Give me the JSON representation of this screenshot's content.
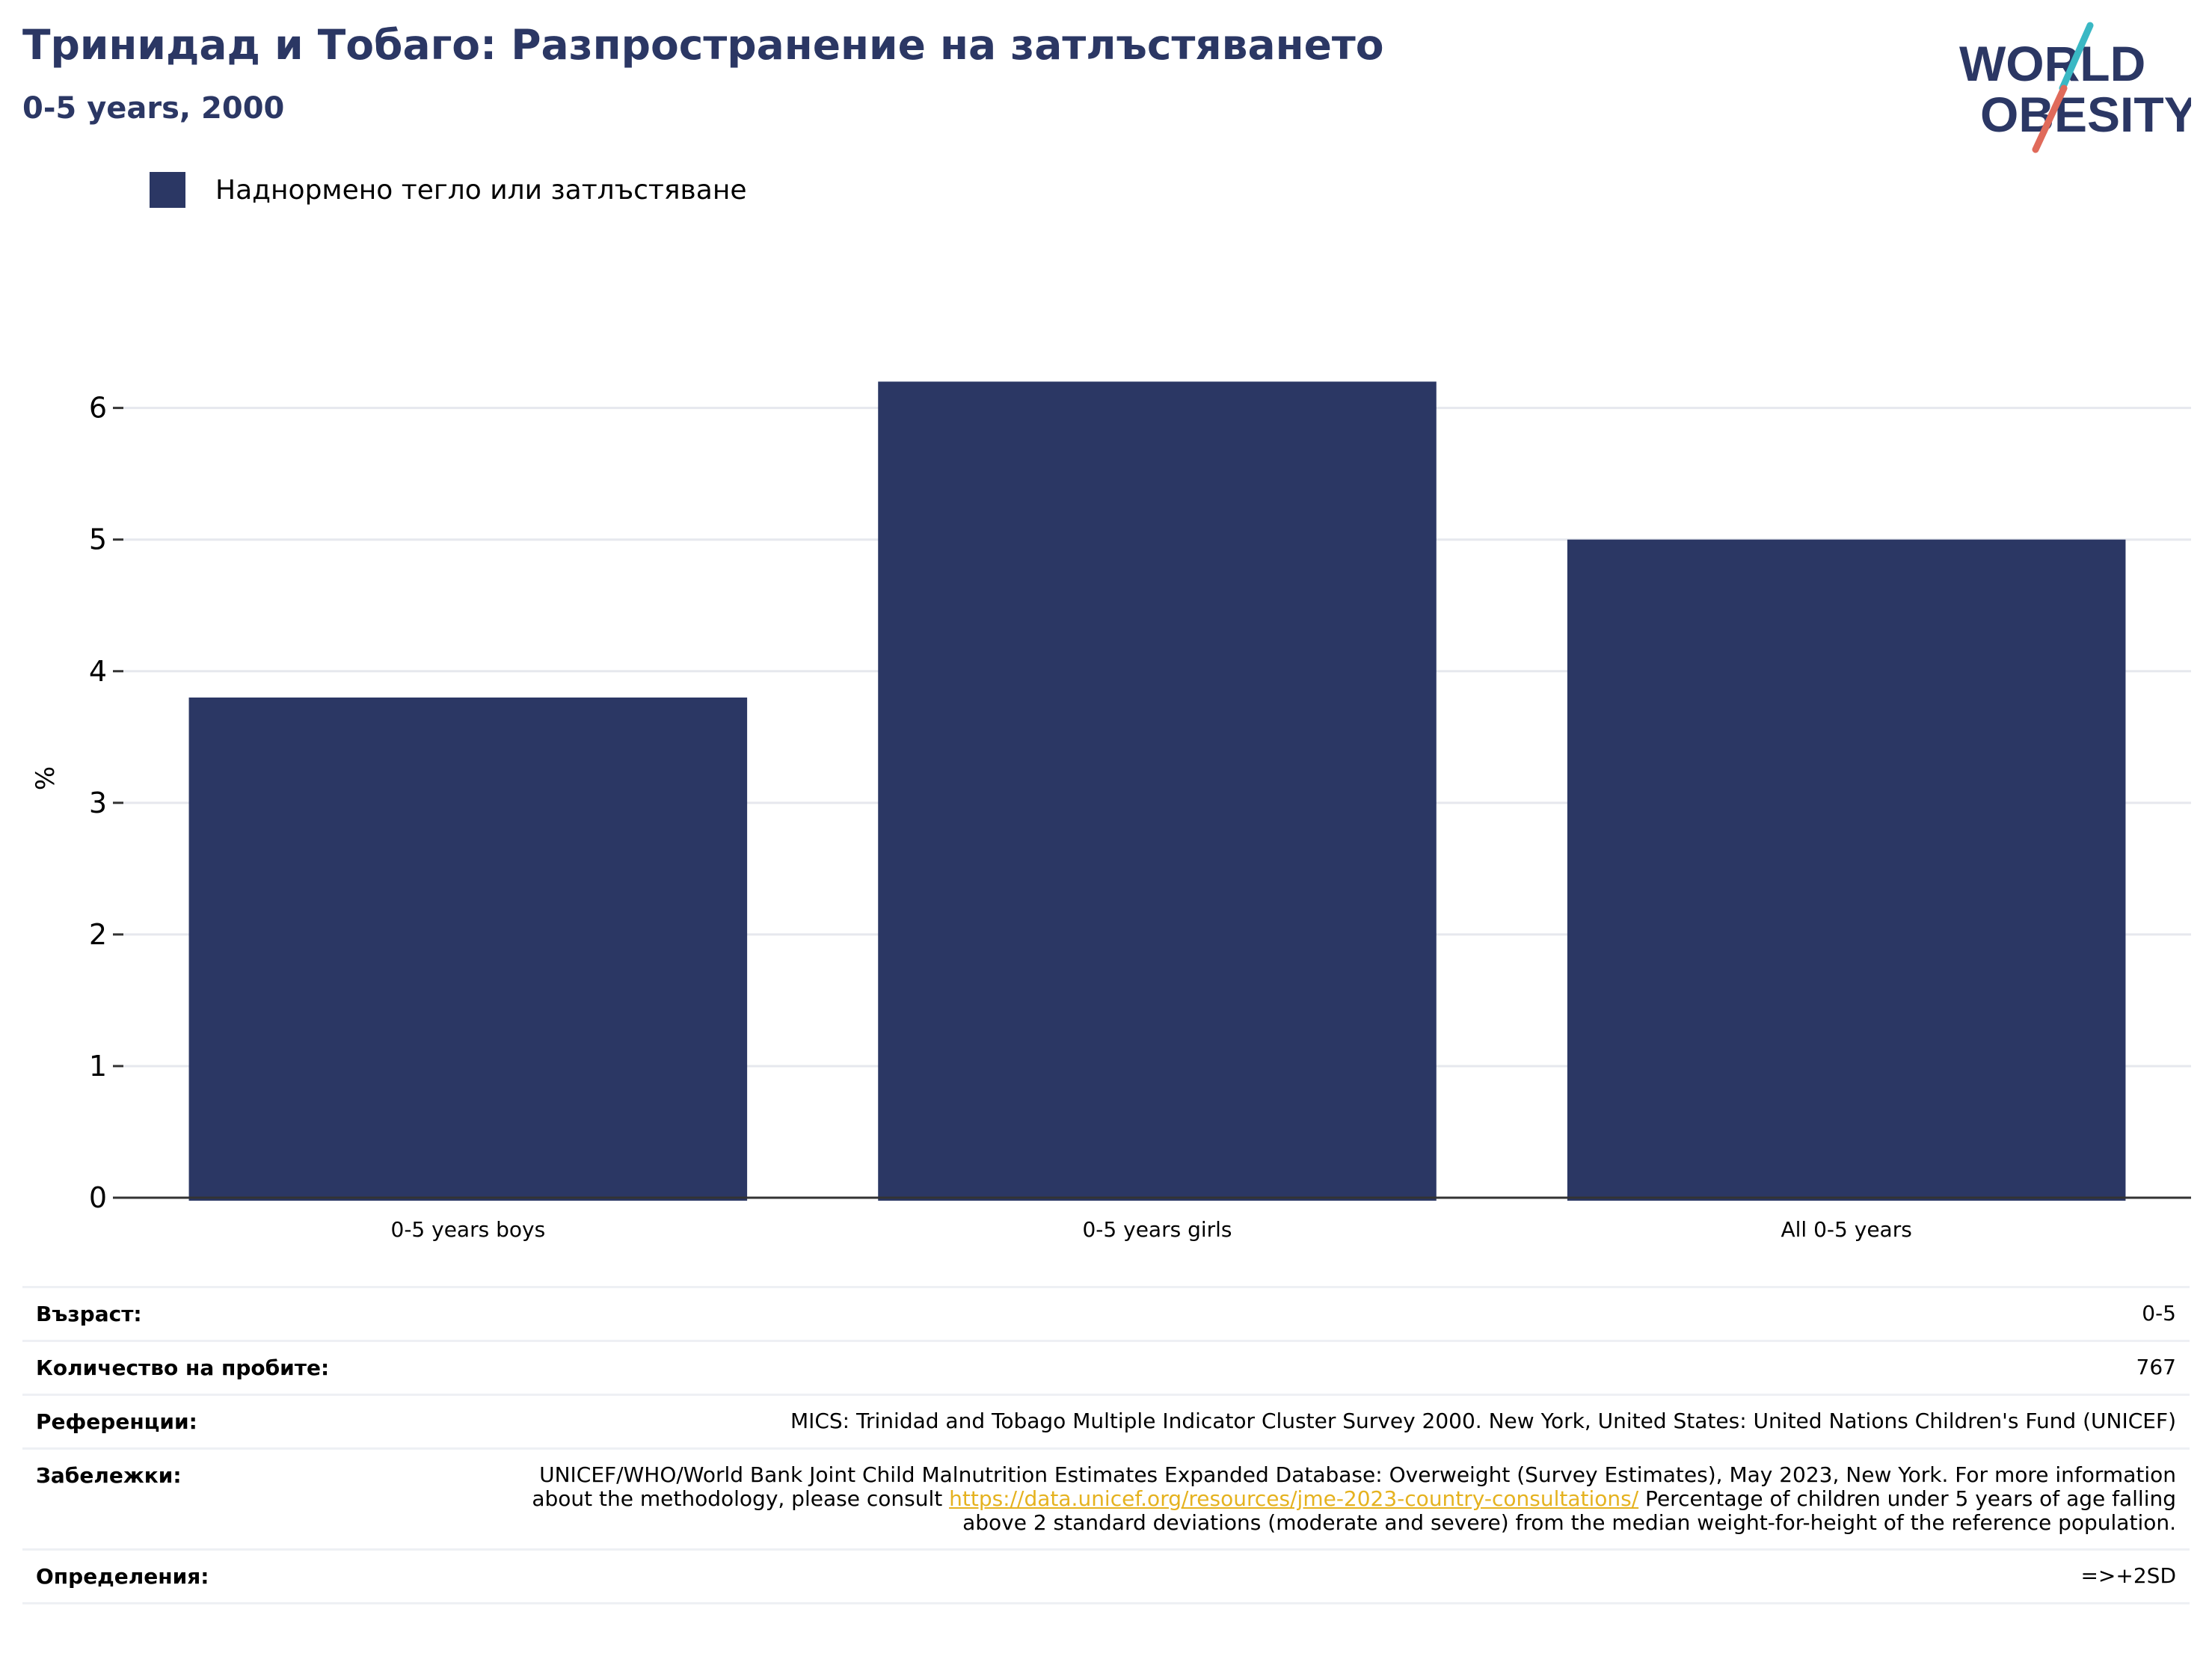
{
  "header": {
    "title": "Тринидад и Тобаго: Разпространение на затлъстяването",
    "subtitle": "0-5 years, 2000"
  },
  "logo": {
    "line1": "WORLD",
    "line2": "OBESITY",
    "text_color": "#2b3764",
    "accent_teal": "#3ab8c4",
    "accent_coral": "#e06a5a"
  },
  "legend": {
    "label": "Наднормено тегло или затлъстяване",
    "color": "#2b3764"
  },
  "chart_data": {
    "type": "bar",
    "categories": [
      "0-5 years boys",
      "0-5 years girls",
      "All 0-5 years"
    ],
    "series": [
      {
        "name": "Наднормено тегло или затлъстяване",
        "values": [
          3.8,
          6.2,
          5.0
        ],
        "color": "#2b3764"
      }
    ],
    "ylabel": "%",
    "ylim": [
      0,
      6.6
    ],
    "yticks": [
      "0",
      "1",
      "2",
      "3",
      "4",
      "5",
      "6"
    ],
    "grid": true,
    "legend_position": "top-left"
  },
  "meta": {
    "rows": [
      {
        "label": "Възраст:",
        "value": "0-5"
      },
      {
        "label": "Количество на пробите:",
        "value": "767"
      },
      {
        "label": "Референции:",
        "value": "MICS: Trinidad and Tobago Multiple Indicator Cluster Survey 2000. New York, United States: United Nations Children's Fund (UNICEF)"
      },
      {
        "label": "Забележки:",
        "value_before": "UNICEF/WHO/World Bank Joint Child Malnutrition Estimates Expanded Database: Overweight (Survey Estimates), May 2023, New York. For more information about the methodology, please consult ",
        "link": "https://data.unicef.org/resources/jme-2023-country-consultations/",
        "value_after": " Percentage of children under 5 years of age falling above 2 standard deviations (moderate and severe) from the median weight-for-height of the reference population."
      },
      {
        "label": "Определения:",
        "value": "=>+2SD"
      }
    ]
  }
}
